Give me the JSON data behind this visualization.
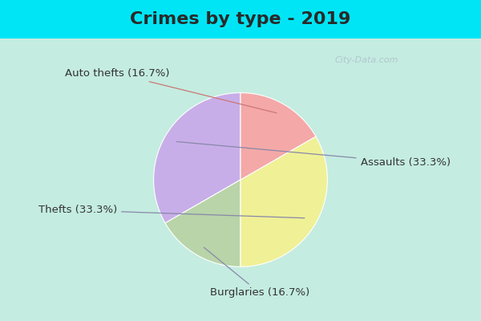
{
  "title": "Crimes by type - 2019",
  "slices": [
    {
      "label": "Assaults (33.3%)",
      "value": 33.3,
      "color": "#c8aee8"
    },
    {
      "label": "Burglaries (16.7%)",
      "value": 16.7,
      "color": "#b8d4a8"
    },
    {
      "label": "Thefts (33.3%)",
      "value": 33.3,
      "color": "#f0f096"
    },
    {
      "label": "Auto thefts (16.7%)",
      "value": 16.7,
      "color": "#f4a8a8"
    }
  ],
  "background_top": "#00e5f5",
  "background_main": "#c4ece0",
  "title_fontsize": 16,
  "label_fontsize": 9.5,
  "watermark": "City-Data.com",
  "startangle": 90,
  "title_color": "#2a2a2a"
}
